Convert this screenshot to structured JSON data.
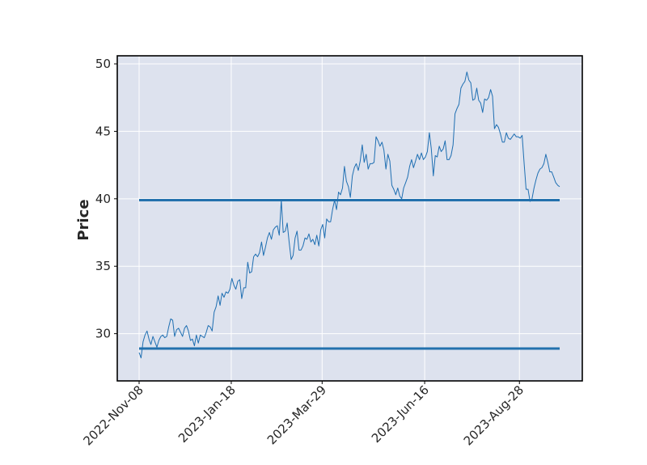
{
  "chart_data": {
    "type": "line",
    "title": "",
    "xlabel": "",
    "ylabel": "Price",
    "ylim": [
      26.5,
      50.6
    ],
    "yticks": [
      30,
      35,
      40,
      45,
      50
    ],
    "xticks": [
      "2022-Nov-08",
      "2023-Jan-18",
      "2023-Mar-29",
      "2023-Jun-16",
      "2023-Aug-28"
    ],
    "x_start": "2022-11-08",
    "x_end": "2023-09-28",
    "grid": true,
    "colors": {
      "background": "#dde2ee",
      "grid": "#ffffff",
      "line": "#1f6fb2",
      "hline": "#2371ad",
      "frame": "#000000"
    },
    "series": [
      {
        "values": [
          28.6,
          28.2,
          29.4,
          29.9,
          30.2,
          29.6,
          29.2,
          29.8,
          29.4,
          29.0,
          29.5,
          29.8,
          29.9,
          29.7,
          29.8,
          30.5,
          31.1,
          31.0,
          29.8,
          30.3,
          30.4,
          30.1,
          29.8,
          30.4,
          30.6,
          30.2,
          29.5,
          29.6,
          29.1,
          29.9,
          29.3,
          29.9,
          29.8,
          29.7,
          30.1,
          30.6,
          30.5,
          30.2,
          31.6,
          32.0,
          32.8,
          32.1,
          33.0,
          32.7,
          33.1,
          33.0,
          33.3,
          34.1,
          33.6,
          33.3,
          33.9,
          34.0,
          32.6,
          33.4,
          33.4,
          35.3,
          34.5,
          34.6,
          35.7,
          35.9,
          35.7,
          36.0,
          36.8,
          35.8,
          36.4,
          37.1,
          37.5,
          37.0,
          37.7,
          37.9,
          38.0,
          37.3,
          39.9,
          37.5,
          37.6,
          38.2,
          36.8,
          35.5,
          35.8,
          37.1,
          37.6,
          36.2,
          36.2,
          36.5,
          37.1,
          37.0,
          37.4,
          36.8,
          37.0,
          36.6,
          37.3,
          36.5,
          37.7,
          38.1,
          37.1,
          38.5,
          38.3,
          38.3,
          39.2,
          39.9,
          39.2,
          40.5,
          40.3,
          40.8,
          42.4,
          41.3,
          40.9,
          40.1,
          41.7,
          42.3,
          42.6,
          42.1,
          42.8,
          44.0,
          42.7,
          43.3,
          42.2,
          42.6,
          42.6,
          42.7,
          44.6,
          44.3,
          43.9,
          44.2,
          43.6,
          42.2,
          43.3,
          42.8,
          41.0,
          40.7,
          40.3,
          40.8,
          40.2,
          40.0,
          40.8,
          41.2,
          41.6,
          42.4,
          42.9,
          42.3,
          42.8,
          43.3,
          42.9,
          43.4,
          42.9,
          43.1,
          43.5,
          44.9,
          43.7,
          41.7,
          43.2,
          43.1,
          43.9,
          43.5,
          43.7,
          44.3,
          42.9,
          42.9,
          43.2,
          44.0,
          46.3,
          46.7,
          47.0,
          48.2,
          48.5,
          48.7,
          49.4,
          48.8,
          48.6,
          47.3,
          47.4,
          48.2,
          47.3,
          47.1,
          46.4,
          47.4,
          47.3,
          47.5,
          48.1,
          47.6,
          45.2,
          45.5,
          45.3,
          44.8,
          44.2,
          44.2,
          44.9,
          44.5,
          44.4,
          44.6,
          44.8,
          44.6,
          44.6,
          44.5,
          44.7,
          42.6,
          40.7,
          40.7,
          39.8,
          40.0,
          40.8,
          41.4,
          41.9,
          42.2,
          42.3,
          42.6,
          43.3,
          42.7,
          42.0,
          42.0,
          41.6,
          41.2,
          41.0,
          40.9
        ],
        "color": "#1f6fb2"
      }
    ],
    "hlines": [
      {
        "y": 39.9,
        "x_from_index": 0,
        "x_to_index": 213
      },
      {
        "y": 28.9,
        "x_from_index": 0,
        "x_to_index": 213
      }
    ]
  }
}
